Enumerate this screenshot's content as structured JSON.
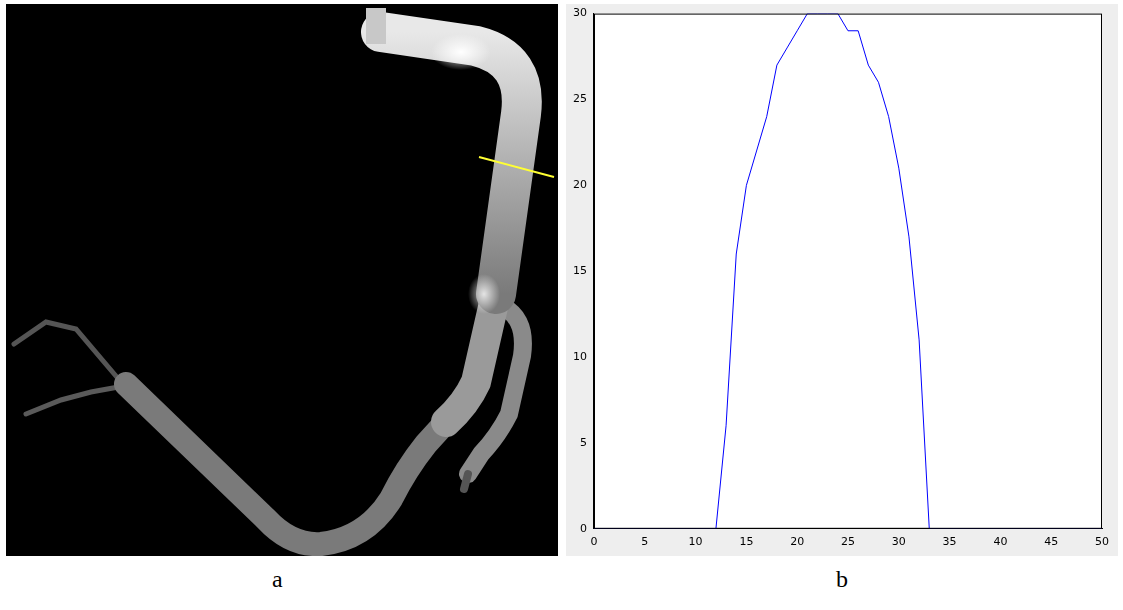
{
  "image": {
    "label": "a"
  },
  "chart_data": {
    "type": "line",
    "panel_label": "b",
    "x": [
      0,
      1,
      2,
      3,
      4,
      5,
      6,
      7,
      8,
      9,
      10,
      11,
      12,
      13,
      14,
      15,
      16,
      17,
      18,
      19,
      20,
      21,
      22,
      23,
      24,
      25,
      26,
      27,
      28,
      29,
      30,
      31,
      32,
      33,
      34,
      35,
      36,
      37,
      38,
      39,
      40,
      41,
      42,
      43,
      44,
      45,
      46,
      47,
      48,
      49,
      50
    ],
    "values": [
      0,
      0,
      0,
      0,
      0,
      0,
      0,
      0,
      0,
      0,
      0,
      0,
      0,
      6,
      16,
      20,
      22,
      24,
      27,
      28,
      29,
      30,
      30,
      30,
      30,
      29,
      29,
      27,
      26,
      24,
      21,
      17,
      11,
      0,
      0,
      0,
      0,
      0,
      0,
      0,
      0,
      0,
      0,
      0,
      0,
      0,
      0,
      0,
      0,
      0,
      0
    ],
    "color": "#0000ff",
    "xlim": [
      0,
      50
    ],
    "xticks": [
      0,
      5,
      10,
      15,
      20,
      25,
      30,
      35,
      40,
      45,
      50
    ],
    "ylim": [
      0,
      30
    ],
    "yticks": [
      0,
      5,
      10,
      15,
      20,
      25,
      30
    ],
    "grid": false
  }
}
